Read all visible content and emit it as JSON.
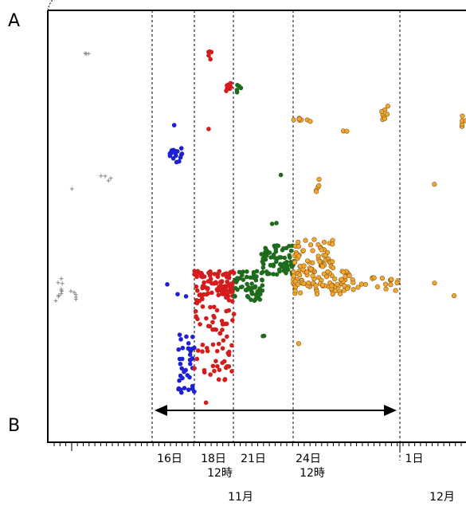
{
  "labels": {
    "a": "A",
    "b": "B"
  },
  "x_axis": {
    "days": [
      "16日",
      "18日",
      "21日",
      "24日",
      "1日"
    ],
    "times": [
      "12時",
      "12時"
    ],
    "months": [
      "11月",
      "12月"
    ]
  }
}
